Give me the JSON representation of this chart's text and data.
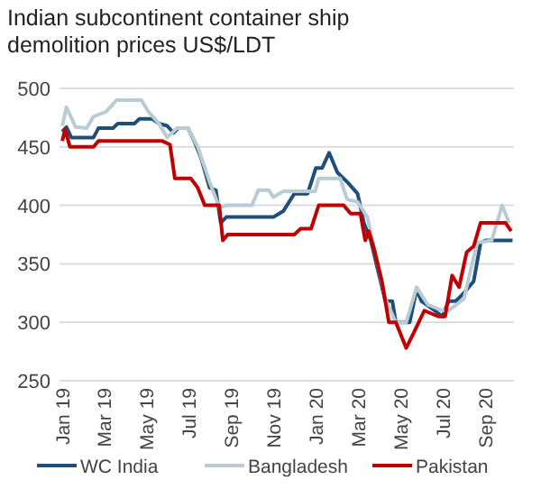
{
  "chart_data": {
    "type": "line",
    "title": "Indian subcontinent container ship demolition prices US$/LDT",
    "xlim": [
      "2018-12-28",
      "2020-10-12"
    ],
    "xticks": [
      {
        "value": "2019-01-01",
        "label": "Jan 19"
      },
      {
        "value": "2019-03-01",
        "label": "Mar 19"
      },
      {
        "value": "2019-05-01",
        "label": "May 19"
      },
      {
        "value": "2019-07-01",
        "label": "Jul 19"
      },
      {
        "value": "2019-09-01",
        "label": "Sep 19"
      },
      {
        "value": "2019-11-01",
        "label": "Nov 19"
      },
      {
        "value": "2020-01-01",
        "label": "Jan 20"
      },
      {
        "value": "2020-03-01",
        "label": "Mar 20"
      },
      {
        "value": "2020-05-01",
        "label": "May 20"
      },
      {
        "value": "2020-07-01",
        "label": "Jul 20"
      },
      {
        "value": "2020-09-01",
        "label": "Sep 20"
      }
    ],
    "ylim": [
      250,
      500
    ],
    "yticks": [
      250,
      300,
      350,
      400,
      450,
      500
    ],
    "grid": "y",
    "legend": "bottom",
    "line_style": "solid",
    "marker": "none",
    "series": [
      {
        "name": "WC India",
        "color": "#1f4e79",
        "x": [
          "2019-01-01",
          "2019-01-07",
          "2019-01-14",
          "2019-02-15",
          "2019-02-22",
          "2019-03-15",
          "2019-03-22",
          "2019-04-15",
          "2019-04-22",
          "2019-05-10",
          "2019-05-20",
          "2019-06-01",
          "2019-06-10",
          "2019-06-17",
          "2019-07-01",
          "2019-07-10",
          "2019-07-20",
          "2019-08-01",
          "2019-08-10",
          "2019-08-17",
          "2019-08-25",
          "2019-11-01",
          "2019-11-15",
          "2019-12-01",
          "2019-12-20",
          "2020-01-01",
          "2020-01-10",
          "2020-01-20",
          "2020-02-01",
          "2020-02-15",
          "2020-03-01",
          "2020-03-10",
          "2020-03-20",
          "2020-04-01",
          "2020-04-10",
          "2020-04-20",
          "2020-04-25",
          "2020-05-15",
          "2020-05-25",
          "2020-06-01",
          "2020-06-20",
          "2020-07-01",
          "2020-07-10",
          "2020-07-20",
          "2020-08-01",
          "2020-08-15",
          "2020-08-25",
          "2020-09-01",
          "2020-10-10"
        ],
        "values": [
          463,
          467,
          458,
          458,
          466,
          466,
          470,
          470,
          474,
          474,
          470,
          468,
          462,
          466,
          466,
          455,
          440,
          415,
          413,
          385,
          390,
          390,
          395,
          410,
          410,
          432,
          432,
          445,
          428,
          420,
          410,
          385,
          370,
          340,
          318,
          318,
          300,
          300,
          328,
          318,
          310,
          305,
          318,
          318,
          325,
          335,
          368,
          370,
          370
        ]
      },
      {
        "name": "Bangladesh",
        "color": "#b8ccd4",
        "x": [
          "2019-01-01",
          "2019-01-07",
          "2019-01-20",
          "2019-02-05",
          "2019-02-15",
          "2019-03-05",
          "2019-03-20",
          "2019-04-25",
          "2019-05-05",
          "2019-05-20",
          "2019-06-01",
          "2019-06-15",
          "2019-07-01",
          "2019-07-15",
          "2019-08-01",
          "2019-08-15",
          "2019-08-25",
          "2019-10-01",
          "2019-10-10",
          "2019-10-25",
          "2019-11-01",
          "2019-11-15",
          "2019-12-31",
          "2020-01-05",
          "2020-02-05",
          "2020-02-15",
          "2020-03-01",
          "2020-03-15",
          "2020-04-01",
          "2020-04-10",
          "2020-04-25",
          "2020-05-10",
          "2020-05-25",
          "2020-06-10",
          "2020-07-01",
          "2020-07-10",
          "2020-08-01",
          "2020-08-20",
          "2020-09-10",
          "2020-09-25",
          "2020-10-05"
        ],
        "values": [
          468,
          484,
          467,
          466,
          476,
          480,
          490,
          490,
          480,
          470,
          458,
          466,
          466,
          450,
          420,
          398,
          400,
          400,
          413,
          413,
          407,
          412,
          412,
          423,
          423,
          405,
          403,
          390,
          345,
          320,
          300,
          300,
          330,
          315,
          310,
          310,
          320,
          368,
          370,
          400,
          385
        ]
      },
      {
        "name": "Pakistan",
        "color": "#c00000",
        "x": [
          "2019-01-01",
          "2019-01-05",
          "2019-01-12",
          "2019-02-15",
          "2019-02-22",
          "2019-05-25",
          "2019-06-05",
          "2019-06-12",
          "2019-07-05",
          "2019-07-15",
          "2019-07-25",
          "2019-08-15",
          "2019-08-20",
          "2019-08-27",
          "2019-12-01",
          "2019-12-10",
          "2019-12-25",
          "2020-01-05",
          "2020-02-10",
          "2020-02-20",
          "2020-03-05",
          "2020-03-12",
          "2020-03-17",
          "2020-03-25",
          "2020-04-05",
          "2020-04-15",
          "2020-04-25",
          "2020-05-10",
          "2020-05-20",
          "2020-06-05",
          "2020-06-25",
          "2020-07-05",
          "2020-07-15",
          "2020-07-25",
          "2020-08-05",
          "2020-08-15",
          "2020-08-25",
          "2020-09-30",
          "2020-10-08"
        ],
        "values": [
          455,
          465,
          450,
          450,
          455,
          455,
          452,
          423,
          423,
          415,
          400,
          400,
          370,
          375,
          375,
          380,
          380,
          400,
          400,
          393,
          393,
          370,
          378,
          362,
          335,
          300,
          300,
          278,
          290,
          310,
          305,
          305,
          340,
          330,
          360,
          365,
          385,
          385,
          378
        ]
      }
    ]
  }
}
